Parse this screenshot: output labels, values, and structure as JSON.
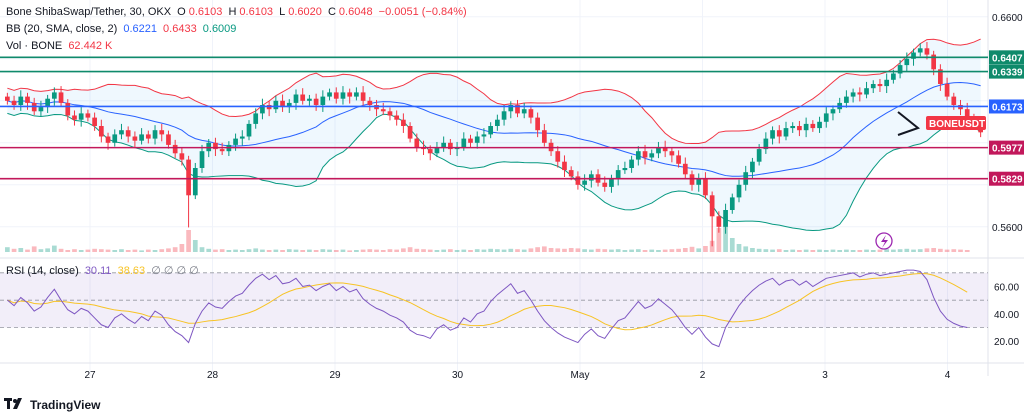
{
  "header": {
    "symbol": "Bone ShibaSwap/Tether, 30, OKX",
    "o_label": "O",
    "o_value": "0.6103",
    "h_label": "H",
    "h_value": "0.6103",
    "l_label": "L",
    "l_value": "0.6020",
    "c_label": "C",
    "c_value": "0.6048",
    "change": "−0.0051 (−0.84%)",
    "bb_label": "BB (20, SMA, close, 2)",
    "bb_basis": "0.6221",
    "bb_upper": "0.6433",
    "bb_lower": "0.6009",
    "vol_label": "Vol · BONE",
    "vol_value": "62.442 K",
    "rsi_label": "RSI (14, close)",
    "rsi_value": "30.11",
    "rsi_ma_value": "38.63",
    "rsi_placeholders": "∅ ∅ ∅ ∅"
  },
  "footer": {
    "brand": "TradingView"
  },
  "colors": {
    "up": "#089981",
    "down": "#f23645",
    "bb_upper": "#f23645",
    "bb_lower": "#089981",
    "bb_basis": "#2962ff",
    "rsi": "#7e57c2",
    "rsi_ma": "#f7c325",
    "level_green": "#0f8a6b",
    "level_blue": "#2962ff",
    "level_red": "#c2185b"
  },
  "chart_data": {
    "type": "candlestick",
    "price_axis_ticks": [
      "0.6600",
      "0.5600"
    ],
    "price_range": [
      0.548,
      0.668
    ],
    "time_labels": [
      "27",
      "28",
      "29",
      "30",
      "May",
      "2",
      "3",
      "4"
    ],
    "levels": [
      {
        "value": 0.6407,
        "label": "0.6407",
        "color": "#0f8a6b"
      },
      {
        "value": 0.6339,
        "label": "0.6339",
        "color": "#0f8a6b"
      },
      {
        "value": 0.6173,
        "label": "0.6173",
        "color": "#2962ff"
      },
      {
        "value": 0.5977,
        "label": "0.5977",
        "color": "#c2185b"
      },
      {
        "value": 0.5829,
        "label": "0.5829",
        "color": "#c2185b"
      }
    ],
    "current_tag": "BONEUSDT",
    "rsi_axis_ticks": [
      "60.00",
      "40.00",
      "20.00"
    ],
    "rsi_range": [
      15,
      75
    ],
    "rsi_band": [
      30,
      70
    ],
    "closes": [
      0.62,
      0.618,
      0.622,
      0.619,
      0.615,
      0.617,
      0.621,
      0.624,
      0.619,
      0.613,
      0.611,
      0.614,
      0.612,
      0.608,
      0.603,
      0.6,
      0.604,
      0.606,
      0.603,
      0.601,
      0.604,
      0.602,
      0.606,
      0.604,
      0.599,
      0.595,
      0.592,
      0.575,
      0.588,
      0.596,
      0.6,
      0.597,
      0.596,
      0.599,
      0.602,
      0.603,
      0.609,
      0.614,
      0.618,
      0.616,
      0.62,
      0.617,
      0.619,
      0.623,
      0.62,
      0.621,
      0.618,
      0.622,
      0.624,
      0.621,
      0.624,
      0.622,
      0.624,
      0.62,
      0.618,
      0.616,
      0.615,
      0.613,
      0.611,
      0.608,
      0.602,
      0.598,
      0.597,
      0.595,
      0.598,
      0.6,
      0.597,
      0.598,
      0.602,
      0.6,
      0.603,
      0.604,
      0.608,
      0.611,
      0.615,
      0.618,
      0.614,
      0.616,
      0.612,
      0.606,
      0.6,
      0.596,
      0.591,
      0.587,
      0.584,
      0.58,
      0.582,
      0.585,
      0.581,
      0.579,
      0.583,
      0.587,
      0.588,
      0.592,
      0.596,
      0.593,
      0.595,
      0.598,
      0.596,
      0.594,
      0.59,
      0.585,
      0.58,
      0.583,
      0.575,
      0.565,
      0.56,
      0.568,
      0.574,
      0.58,
      0.586,
      0.591,
      0.597,
      0.602,
      0.606,
      0.603,
      0.607,
      0.608,
      0.606,
      0.609,
      0.607,
      0.61,
      0.614,
      0.616,
      0.619,
      0.622,
      0.624,
      0.623,
      0.626,
      0.628,
      0.627,
      0.63,
      0.633,
      0.637,
      0.64,
      0.643,
      0.645,
      0.642,
      0.635,
      0.628,
      0.622,
      0.618,
      0.616,
      0.612,
      0.609,
      0.605
    ],
    "rsi": [
      50,
      46,
      52,
      48,
      42,
      45,
      52,
      58,
      50,
      43,
      40,
      44,
      42,
      37,
      32,
      30,
      37,
      40,
      36,
      33,
      38,
      35,
      42,
      39,
      32,
      27,
      24,
      19,
      33,
      42,
      48,
      45,
      44,
      49,
      53,
      55,
      61,
      66,
      69,
      65,
      68,
      62,
      63,
      66,
      60,
      61,
      57,
      60,
      62,
      57,
      60,
      56,
      58,
      51,
      47,
      44,
      42,
      39,
      37,
      34,
      28,
      25,
      24,
      22,
      29,
      32,
      28,
      30,
      37,
      34,
      40,
      42,
      49,
      54,
      58,
      62,
      55,
      57,
      50,
      42,
      35,
      30,
      26,
      23,
      21,
      19,
      25,
      29,
      24,
      22,
      29,
      35,
      37,
      43,
      49,
      44,
      46,
      51,
      47,
      43,
      37,
      30,
      25,
      30,
      23,
      18,
      16,
      30,
      38,
      46,
      52,
      57,
      61,
      64,
      66,
      61,
      64,
      65,
      61,
      64,
      60,
      63,
      66,
      67,
      68,
      69,
      70,
      67,
      69,
      70,
      68,
      69,
      70,
      71,
      72,
      72,
      71,
      65,
      52,
      42,
      36,
      33,
      31,
      30
    ],
    "volume": [
      0.12,
      0.08,
      0.1,
      0.06,
      0.14,
      0.07,
      0.09,
      0.16,
      0.08,
      0.05,
      0.07,
      0.05,
      0.06,
      0.08,
      0.07,
      0.06,
      0.05,
      0.07,
      0.05,
      0.06,
      0.04,
      0.06,
      0.05,
      0.07,
      0.09,
      0.12,
      0.2,
      0.55,
      0.3,
      0.12,
      0.08,
      0.06,
      0.07,
      0.05,
      0.06,
      0.05,
      0.07,
      0.09,
      0.06,
      0.05,
      0.06,
      0.05,
      0.07,
      0.06,
      0.05,
      0.06,
      0.05,
      0.07,
      0.06,
      0.05,
      0.06,
      0.04,
      0.05,
      0.06,
      0.07,
      0.06,
      0.05,
      0.07,
      0.06,
      0.09,
      0.12,
      0.08,
      0.07,
      0.06,
      0.05,
      0.06,
      0.07,
      0.05,
      0.06,
      0.05,
      0.07,
      0.06,
      0.08,
      0.07,
      0.06,
      0.08,
      0.07,
      0.06,
      0.09,
      0.12,
      0.14,
      0.1,
      0.09,
      0.08,
      0.1,
      0.09,
      0.07,
      0.06,
      0.08,
      0.07,
      0.06,
      0.07,
      0.05,
      0.06,
      0.07,
      0.05,
      0.06,
      0.05,
      0.06,
      0.07,
      0.08,
      0.1,
      0.13,
      0.09,
      0.15,
      0.28,
      0.6,
      0.9,
      0.35,
      0.2,
      0.14,
      0.1,
      0.08,
      0.07,
      0.06,
      0.07,
      0.05,
      0.06,
      0.05,
      0.06,
      0.05,
      0.06,
      0.05,
      0.06,
      0.05,
      0.06,
      0.05,
      0.05,
      0.06,
      0.05,
      0.06,
      0.07,
      0.06,
      0.07,
      0.08,
      0.06,
      0.07,
      0.09,
      0.1,
      0.08,
      0.06,
      0.07,
      0.06,
      0.05
    ]
  }
}
